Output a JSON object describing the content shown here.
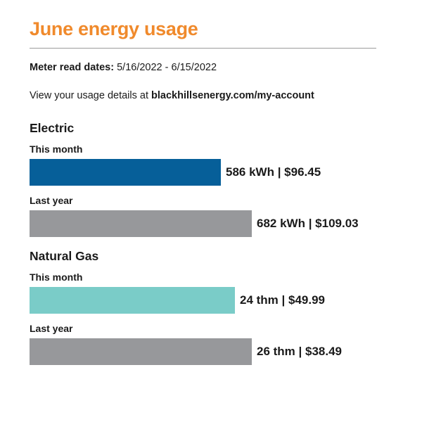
{
  "header": {
    "title": "June energy usage",
    "meter_label": "Meter read dates:",
    "meter_dates": "5/16/2022 - 6/15/2022",
    "view_text": "View your usage details at",
    "url": "blackhillsenergy.com/my-account"
  },
  "colors": {
    "title": "#f08a2c",
    "electric_this_month": "#065f99",
    "gas_this_month": "#7accc8",
    "last_year": "#97989b"
  },
  "chart_data": {
    "type": "bar",
    "orientation": "horizontal",
    "groups": [
      {
        "name": "Electric",
        "unit": "kWh",
        "rows": [
          {
            "label": "This month",
            "usage": 586,
            "cost": 96.45,
            "value_text": "586 kWh | $96.45"
          },
          {
            "label": "Last year",
            "usage": 682,
            "cost": 109.03,
            "value_text": "682 kWh | $109.03"
          }
        ]
      },
      {
        "name": "Natural Gas",
        "unit": "thm",
        "rows": [
          {
            "label": "This month",
            "usage": 24,
            "cost": 49.99,
            "value_text": "24 thm | $49.99"
          },
          {
            "label": "Last year",
            "usage": 26,
            "cost": 38.49,
            "value_text": "26 thm | $38.49"
          }
        ]
      }
    ]
  }
}
